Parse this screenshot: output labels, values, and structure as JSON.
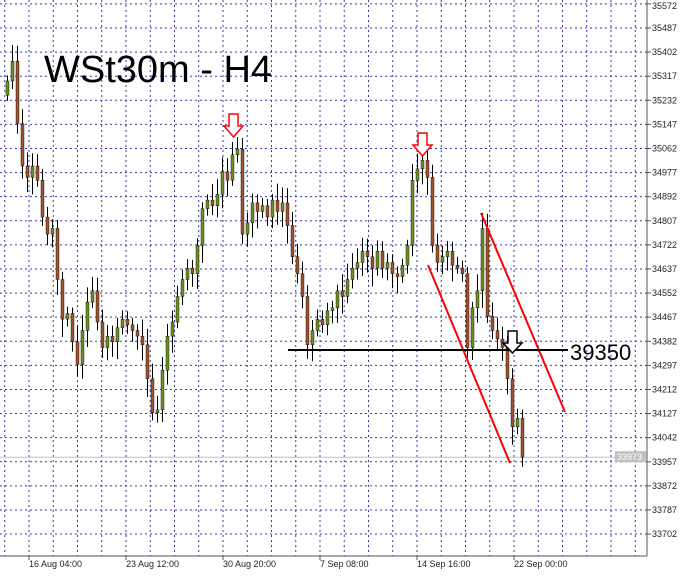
{
  "chart_data": {
    "type": "candlestick",
    "title": "WSt30m - H4",
    "grid": true,
    "colors": {
      "bull": "#6b8e23",
      "bear": "#a0522d",
      "wick": "#000000",
      "grid": "#3a3aa0",
      "annotation": "#ff0000",
      "level": "#000000"
    },
    "y_ticks": [
      35572,
      35487,
      35402,
      35317,
      35232,
      35147,
      35062,
      34977,
      34892,
      34807,
      34722,
      34637,
      34552,
      34467,
      34382,
      34297,
      34212,
      34127,
      34042,
      33957,
      33872,
      33787,
      33702
    ],
    "ylim": [
      33640,
      35585
    ],
    "x_ticks": [
      "16 Aug 04:00",
      "23 Aug 12:00",
      "30 Aug 20:00",
      "7 Sep 08:00",
      "14 Sep 16:00",
      "22 Sep 00:00"
    ],
    "current_price": "33973",
    "level_label": "39350",
    "first_open": 35250,
    "close": [
      35300,
      35370,
      35150,
      35000,
      34960,
      35000,
      34950,
      34820,
      34760,
      34780,
      34600,
      34460,
      34480,
      34380,
      34300,
      34420,
      34520,
      34560,
      34450,
      34360,
      34400,
      34380,
      34430,
      34460,
      34440,
      34420,
      34400,
      34370,
      34250,
      34130,
      34140,
      34280,
      34400,
      34450,
      34540,
      34600,
      34640,
      34620,
      34720,
      34850,
      34880,
      34860,
      34900,
      34980,
      34950,
      35040,
      35060,
      34760,
      34800,
      34870,
      34840,
      34860,
      34820,
      34880,
      34840,
      34870,
      34790,
      34680,
      34620,
      34540,
      34370,
      34420,
      34460,
      34440,
      34490,
      34500,
      34560,
      34540,
      34600,
      34640,
      34660,
      34700,
      34680,
      34640,
      34700,
      34640,
      34660,
      34620,
      34610,
      34650,
      34720,
      34950,
      34990,
      35020,
      34960,
      34720,
      34660,
      34680,
      34700,
      34650,
      34640,
      34620,
      34360,
      34500,
      34560,
      34780,
      34470,
      34420,
      34390,
      34360,
      34250,
      34080,
      34110,
      33973
    ]
  }
}
